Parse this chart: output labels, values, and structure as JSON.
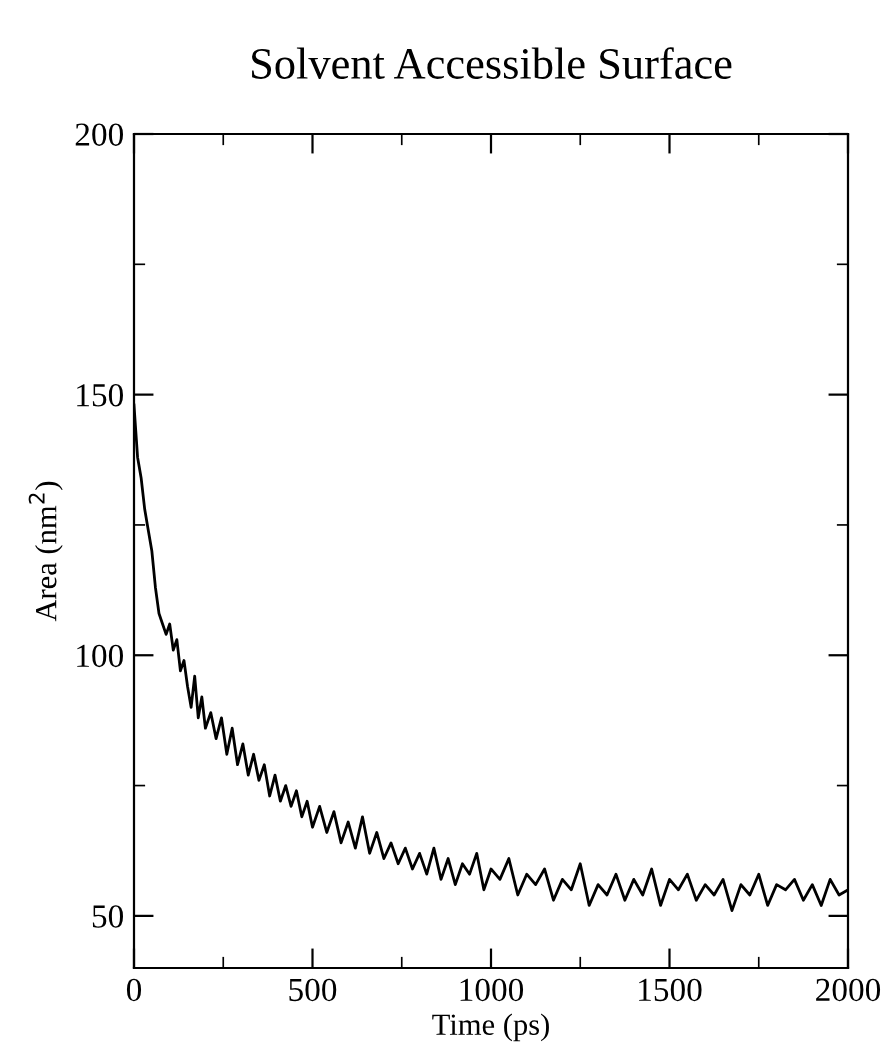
{
  "chart_data": {
    "type": "line",
    "title": "Solvent Accessible Surface",
    "xlabel": "Time (ps)",
    "ylabel": "Area (nm$^{2}$)",
    "xlim": [
      0,
      2000
    ],
    "ylim": [
      40,
      200
    ],
    "xticks": [
      0,
      500,
      1000,
      1500,
      2000
    ],
    "yticks": [
      50,
      100,
      150,
      200
    ],
    "grid": false,
    "legend": false,
    "marker": "none",
    "line_style": "solid",
    "series": [
      {
        "color": "#000000",
        "x": [
          0,
          5,
          10,
          20,
          30,
          40,
          50,
          60,
          70,
          80,
          90,
          100,
          110,
          120,
          130,
          140,
          150,
          160,
          170,
          180,
          190,
          200,
          215,
          230,
          245,
          260,
          275,
          290,
          305,
          320,
          335,
          350,
          365,
          380,
          395,
          410,
          425,
          440,
          455,
          470,
          485,
          500,
          520,
          540,
          560,
          580,
          600,
          620,
          640,
          660,
          680,
          700,
          720,
          740,
          760,
          780,
          800,
          820,
          840,
          860,
          880,
          900,
          920,
          940,
          960,
          980,
          1000,
          1025,
          1050,
          1075,
          1100,
          1125,
          1150,
          1175,
          1200,
          1225,
          1250,
          1275,
          1300,
          1325,
          1350,
          1375,
          1400,
          1425,
          1450,
          1475,
          1500,
          1525,
          1550,
          1575,
          1600,
          1625,
          1650,
          1675,
          1700,
          1725,
          1750,
          1775,
          1800,
          1825,
          1850,
          1875,
          1900,
          1925,
          1950,
          1975,
          2000
        ],
        "values": [
          148,
          143,
          138,
          134,
          128,
          124,
          120,
          113,
          108,
          106,
          104,
          106,
          101,
          103,
          97,
          99,
          94,
          90,
          96,
          88,
          92,
          86,
          89,
          84,
          88,
          81,
          86,
          79,
          83,
          77,
          81,
          76,
          79,
          73,
          77,
          72,
          75,
          71,
          74,
          69,
          72,
          67,
          71,
          66,
          70,
          64,
          68,
          63,
          69,
          62,
          66,
          61,
          64,
          60,
          63,
          59,
          62,
          58,
          63,
          57,
          61,
          56,
          60,
          58,
          62,
          55,
          59,
          57,
          61,
          54,
          58,
          56,
          59,
          53,
          57,
          55,
          60,
          52,
          56,
          54,
          58,
          53,
          57,
          54,
          59,
          52,
          57,
          55,
          58,
          53,
          56,
          54,
          57,
          51,
          56,
          54,
          58,
          52,
          56,
          55,
          57,
          53,
          56,
          52,
          57,
          54,
          55
        ]
      }
    ]
  }
}
